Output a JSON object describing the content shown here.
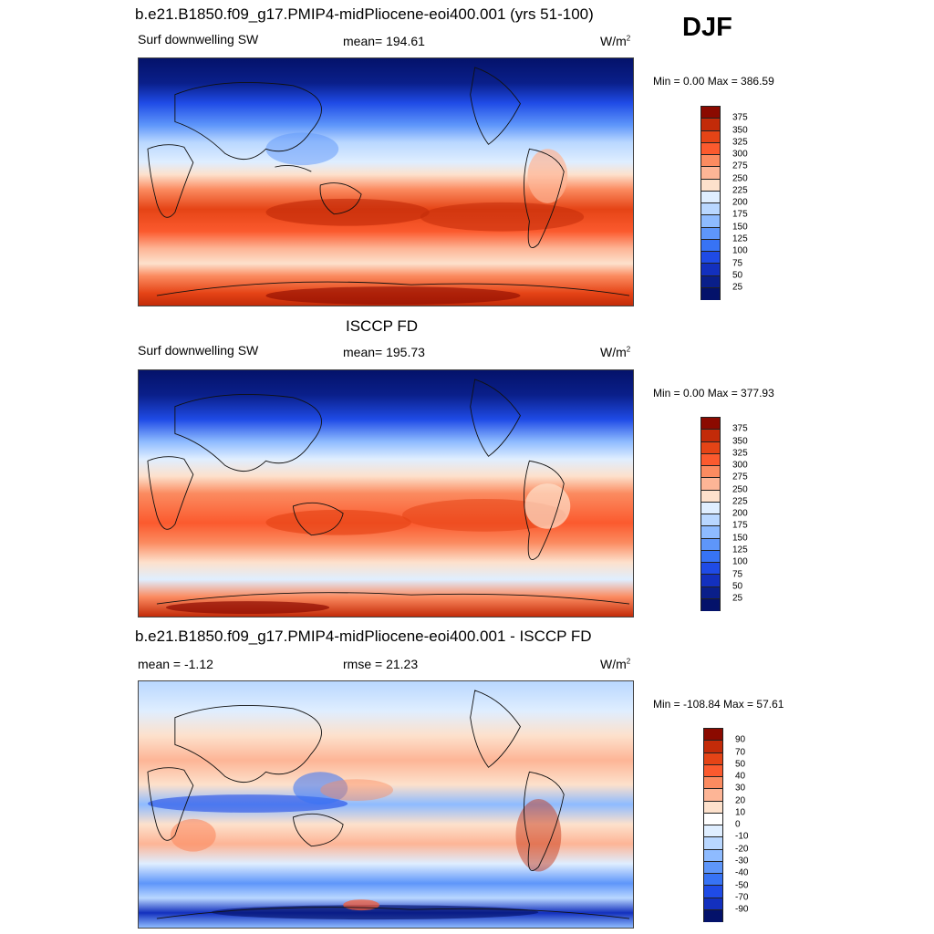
{
  "season": "DJF",
  "panels": [
    {
      "title": "b.e21.B1850.f09_g17.PMIP4-midPliocene-eoi400.001 (yrs 51-100)",
      "left_label": "Surf downwelling SW",
      "center_label": "mean= 194.61",
      "units_base": "W/m",
      "units_exp": "2",
      "minmax": "Min =   0.00 Max = 386.59",
      "colorbar": {
        "labels": [
          "375",
          "350",
          "325",
          "300",
          "275",
          "250",
          "225",
          "200",
          "175",
          "150",
          "125",
          "100",
          "75",
          "50",
          "25"
        ],
        "colors": [
          "#8b0a00",
          "#c32b09",
          "#e54416",
          "#fb5a2e",
          "#fb8b60",
          "#fdb596",
          "#fde1cc",
          "#dfeeff",
          "#b9d7ff",
          "#8ebbff",
          "#5e96fa",
          "#3773f5",
          "#1f4be6",
          "#1330be",
          "#0a1f8a",
          "#04126a"
        ]
      }
    },
    {
      "title": "ISCCP FD",
      "left_label": "Surf downwelling SW",
      "center_label": "mean= 195.73",
      "units_base": "W/m",
      "units_exp": "2",
      "minmax": "Min =   0.00 Max = 377.93",
      "colorbar": {
        "labels": [
          "375",
          "350",
          "325",
          "300",
          "275",
          "250",
          "225",
          "200",
          "175",
          "150",
          "125",
          "100",
          "75",
          "50",
          "25"
        ],
        "colors": [
          "#8b0a00",
          "#c32b09",
          "#e54416",
          "#fb5a2e",
          "#fb8b60",
          "#fdb596",
          "#fde1cc",
          "#dfeeff",
          "#b9d7ff",
          "#8ebbff",
          "#5e96fa",
          "#3773f5",
          "#1f4be6",
          "#1330be",
          "#0a1f8a",
          "#04126a"
        ]
      }
    },
    {
      "title": "b.e21.B1850.f09_g17.PMIP4-midPliocene-eoi400.001 - ISCCP FD",
      "left_label": "mean =  -1.12",
      "center_label": "rmse =  21.23",
      "units_base": "W/m",
      "units_exp": "2",
      "minmax": "Min = -108.84 Max =  57.61",
      "colorbar": {
        "labels": [
          "90",
          "70",
          "50",
          "40",
          "30",
          "20",
          "10",
          "0",
          "-10",
          "-20",
          "-30",
          "-40",
          "-50",
          "-70",
          "-90"
        ],
        "colors": [
          "#8b0a00",
          "#c32b09",
          "#e54416",
          "#fb5a2e",
          "#fb8b60",
          "#fdb596",
          "#fde1cc",
          "#ffffff",
          "#dfeeff",
          "#b9d7ff",
          "#8ebbff",
          "#5e96fa",
          "#3773f5",
          "#1f4be6",
          "#1330be",
          "#04126a"
        ]
      }
    }
  ]
}
